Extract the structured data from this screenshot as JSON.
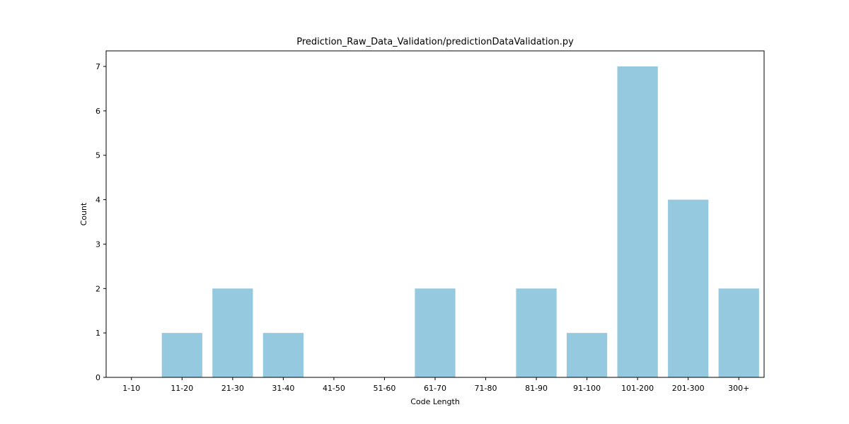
{
  "chart_data": {
    "type": "bar",
    "title": "Prediction_Raw_Data_Validation/predictionDataValidation.py",
    "xlabel": "Code Length",
    "ylabel": "Count",
    "categories": [
      "1-10",
      "11-20",
      "21-30",
      "31-40",
      "41-50",
      "51-60",
      "61-70",
      "71-80",
      "81-90",
      "91-100",
      "101-200",
      "201-300",
      "300+"
    ],
    "values": [
      0,
      1,
      2,
      1,
      0,
      0,
      2,
      0,
      2,
      1,
      7,
      4,
      2
    ],
    "ylim": [
      0,
      7.35
    ],
    "yticks": [
      0,
      1,
      2,
      3,
      4,
      5,
      6,
      7
    ],
    "grid": false,
    "legend": "none",
    "bar_color": "#94c9df"
  }
}
